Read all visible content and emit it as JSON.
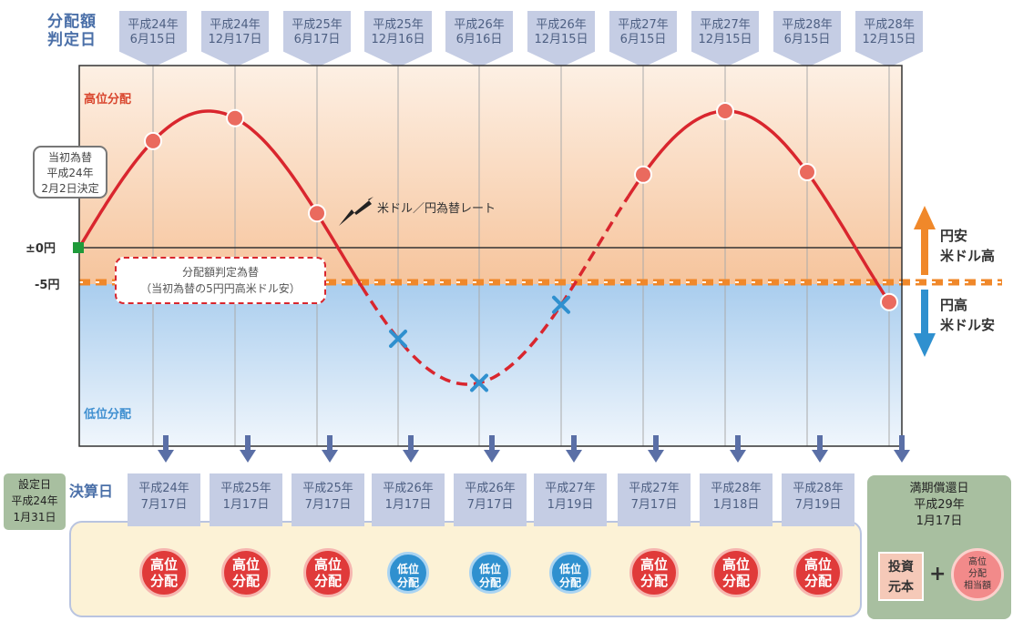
{
  "header": {
    "title_line1": "分配額",
    "title_line2": "判定日"
  },
  "judgment_dates": [
    {
      "year": "平成24年",
      "date": "6月15日"
    },
    {
      "year": "平成24年",
      "date": "12月17日"
    },
    {
      "year": "平成25年",
      "date": "6月17日"
    },
    {
      "year": "平成25年",
      "date": "12月16日"
    },
    {
      "year": "平成26年",
      "date": "6月16日"
    },
    {
      "year": "平成26年",
      "date": "12月15日"
    },
    {
      "year": "平成27年",
      "date": "6月15日"
    },
    {
      "year": "平成27年",
      "date": "12月15日"
    },
    {
      "year": "平成28年",
      "date": "6月15日"
    },
    {
      "year": "平成28年",
      "date": "12月15日"
    }
  ],
  "zones": {
    "high": "高位分配",
    "low": "低位分配"
  },
  "levels": {
    "zero": "±0円",
    "minus5": "-5円"
  },
  "initial_rate_note": {
    "line1": "当初為替",
    "line2": "平成24年",
    "line3": "2月2日決定"
  },
  "rate_line_label": "米ドル／円為替レート",
  "threshold_note": {
    "line1": "分配額判定為替",
    "line2": "（当初為替の5円円高米ドル安）"
  },
  "side_labels": {
    "up_line1": "円安",
    "up_line2": "米ドル高",
    "down_line1": "円高",
    "down_line2": "米ドル安"
  },
  "colors": {
    "high_zone": "#f7c9a2",
    "low_zone": "#a9cdee",
    "curve": "#d9262e",
    "threshold": "#f0882a",
    "up_arrow": "#f0882a",
    "down_arrow": "#2f90cf"
  },
  "chart_data": {
    "type": "line",
    "series": [
      {
        "points": [
          {
            "date": "平成24年6月15日",
            "result": "high"
          },
          {
            "date": "平成24年12月17日",
            "result": "high"
          },
          {
            "date": "平成25年6月17日",
            "result": "high"
          },
          {
            "date": "平成25年12月16日",
            "result": "low"
          },
          {
            "date": "平成26年6月16日",
            "result": "low"
          },
          {
            "date": "平成26年12月15日",
            "result": "low"
          },
          {
            "date": "平成27年6月15日",
            "result": "high"
          },
          {
            "date": "平成27年12月15日",
            "result": "high"
          },
          {
            "date": "平成28年6月15日",
            "result": "high"
          },
          {
            "date": "平成28年12月15日",
            "result": "high"
          }
        ]
      }
    ]
  },
  "settlement": {
    "title": "決算日",
    "set_date": {
      "line1": "設定日",
      "line2": "平成24年",
      "line3": "1月31日"
    }
  },
  "settlement_dates": [
    {
      "year": "平成24年",
      "date": "7月17日",
      "type": "high",
      "l1": "高位",
      "l2": "分配"
    },
    {
      "year": "平成25年",
      "date": "1月17日",
      "type": "high",
      "l1": "高位",
      "l2": "分配"
    },
    {
      "year": "平成25年",
      "date": "7月17日",
      "type": "high",
      "l1": "高位",
      "l2": "分配"
    },
    {
      "year": "平成26年",
      "date": "1月17日",
      "type": "low",
      "l1": "低位",
      "l2": "分配"
    },
    {
      "year": "平成26年",
      "date": "7月17日",
      "type": "low",
      "l1": "低位",
      "l2": "分配"
    },
    {
      "year": "平成27年",
      "date": "1月19日",
      "type": "low",
      "l1": "低位",
      "l2": "分配"
    },
    {
      "year": "平成27年",
      "date": "7月17日",
      "type": "high",
      "l1": "高位",
      "l2": "分配"
    },
    {
      "year": "平成28年",
      "date": "1月18日",
      "type": "high",
      "l1": "高位",
      "l2": "分配"
    },
    {
      "year": "平成28年",
      "date": "7月19日",
      "type": "high",
      "l1": "高位",
      "l2": "分配"
    }
  ],
  "maturity": {
    "line1": "満期償還日",
    "line2": "平成29年",
    "line3": "1月17日",
    "principal_l1": "投資",
    "principal_l2": "元本",
    "plus": "+",
    "final_l1": "高位",
    "final_l2": "分配",
    "final_l3": "相当額"
  }
}
